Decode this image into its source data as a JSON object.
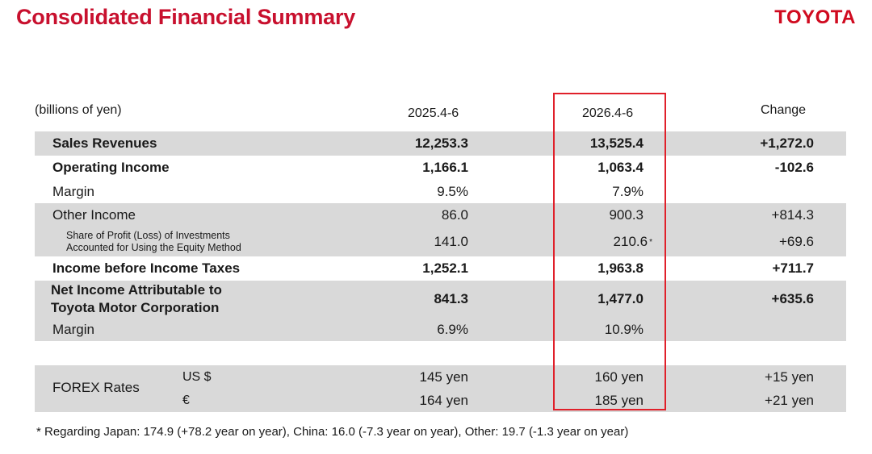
{
  "header": {
    "title": "Consolidated Financial Summary",
    "logo_text": "TOYOTA"
  },
  "table": {
    "unit_label": "(billions of yen)",
    "columns": [
      "2025.4-6",
      "2026.4-6",
      "Change"
    ],
    "rows": [
      {
        "label": "Sales Revenues",
        "v1": "12,253.3",
        "v2": "13,525.4",
        "change": "+1,272.0"
      },
      {
        "label": "Operating Income",
        "v1": "1,166.1",
        "v2": "1,063.4",
        "change": "-102.6"
      },
      {
        "label": "Margin",
        "v1": "9.5%",
        "v2": "7.9%",
        "change": ""
      },
      {
        "label": "Other Income",
        "v1": "86.0",
        "v2": "900.3",
        "change": "+814.3"
      },
      {
        "label_line1": "Share of Profit (Loss) of Investments",
        "label_line2": "Accounted for Using the Equity Method",
        "v1": "141.0",
        "v2": "210.6",
        "v2_mark": "*",
        "change": "+69.6"
      },
      {
        "label": "Income before Income Taxes",
        "v1": "1,252.1",
        "v2": "1,963.8",
        "change": "+711.7"
      },
      {
        "label_line1": "Net Income Attributable to",
        "label_line2": "Toyota Motor Corporation",
        "v1": "841.3",
        "v2": "1,477.0",
        "change": "+635.6"
      },
      {
        "label": "Margin",
        "v1": "6.9%",
        "v2": "10.9%",
        "change": ""
      }
    ],
    "forex": {
      "label": "FOREX Rates",
      "rows": [
        {
          "currency": "US $",
          "v1": "145 yen",
          "v2": "160 yen",
          "change": "+15 yen"
        },
        {
          "currency": "€",
          "v1": "164 yen",
          "v2": "185 yen",
          "change": "+21 yen"
        }
      ]
    }
  },
  "footnote": "* Regarding Japan: 174.9 (+78.2 year on year), China: 16.0  (-7.3 year on year), Other: 19.7 (-1.3 year on year)",
  "colors": {
    "title": "#c8102e",
    "highlight_border": "#e0202a",
    "row_shade": "#d9d9d9"
  }
}
